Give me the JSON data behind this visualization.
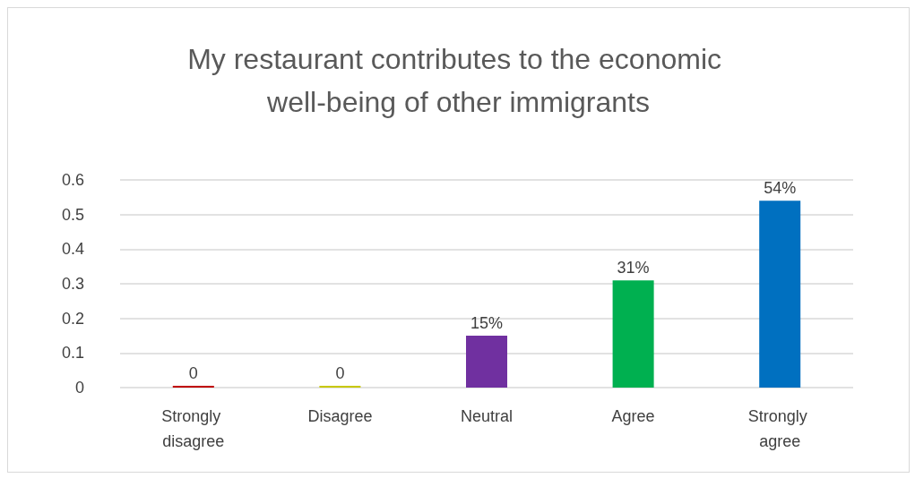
{
  "chart_data": {
    "type": "bar",
    "title": "My restaurant contributes to the economic well-being of other immigrants",
    "categories": [
      "Strongly disagree",
      "Disagree",
      "Neutral",
      "Agree",
      "Strongly agree"
    ],
    "values": [
      0,
      0,
      0.15,
      0.31,
      0.54
    ],
    "value_labels": [
      "0",
      "0",
      "15%",
      "31%",
      "54%"
    ],
    "colors": [
      "#c00000",
      "#c8c800",
      "#7030a0",
      "#00b050",
      "#0070c0"
    ],
    "ylim": [
      0,
      0.6
    ],
    "yticks": [
      0,
      0.1,
      0.2,
      0.3,
      0.4,
      0.5,
      0.6
    ],
    "grid": "y"
  }
}
